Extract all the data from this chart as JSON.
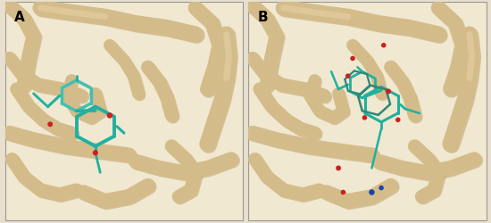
{
  "figsize": [
    5.5,
    2.51
  ],
  "dpi": 100,
  "background_color": "#e8e0cc",
  "panel_bg": "#f0e8d0",
  "protein_color": "#d4bc8a",
  "protein_dark": "#b89860",
  "protein_light": "#e8d4a8",
  "ligand_cyan": "#20b0a0",
  "ligand_cyan2": "#40c0b0",
  "ligand_teal": "#308878",
  "ligand_red": "#cc2020",
  "ligand_blue": "#2040aa",
  "label_A": "A",
  "label_B": "B",
  "label_fontsize": 11,
  "label_fontweight": "bold",
  "border_color": "#999999"
}
